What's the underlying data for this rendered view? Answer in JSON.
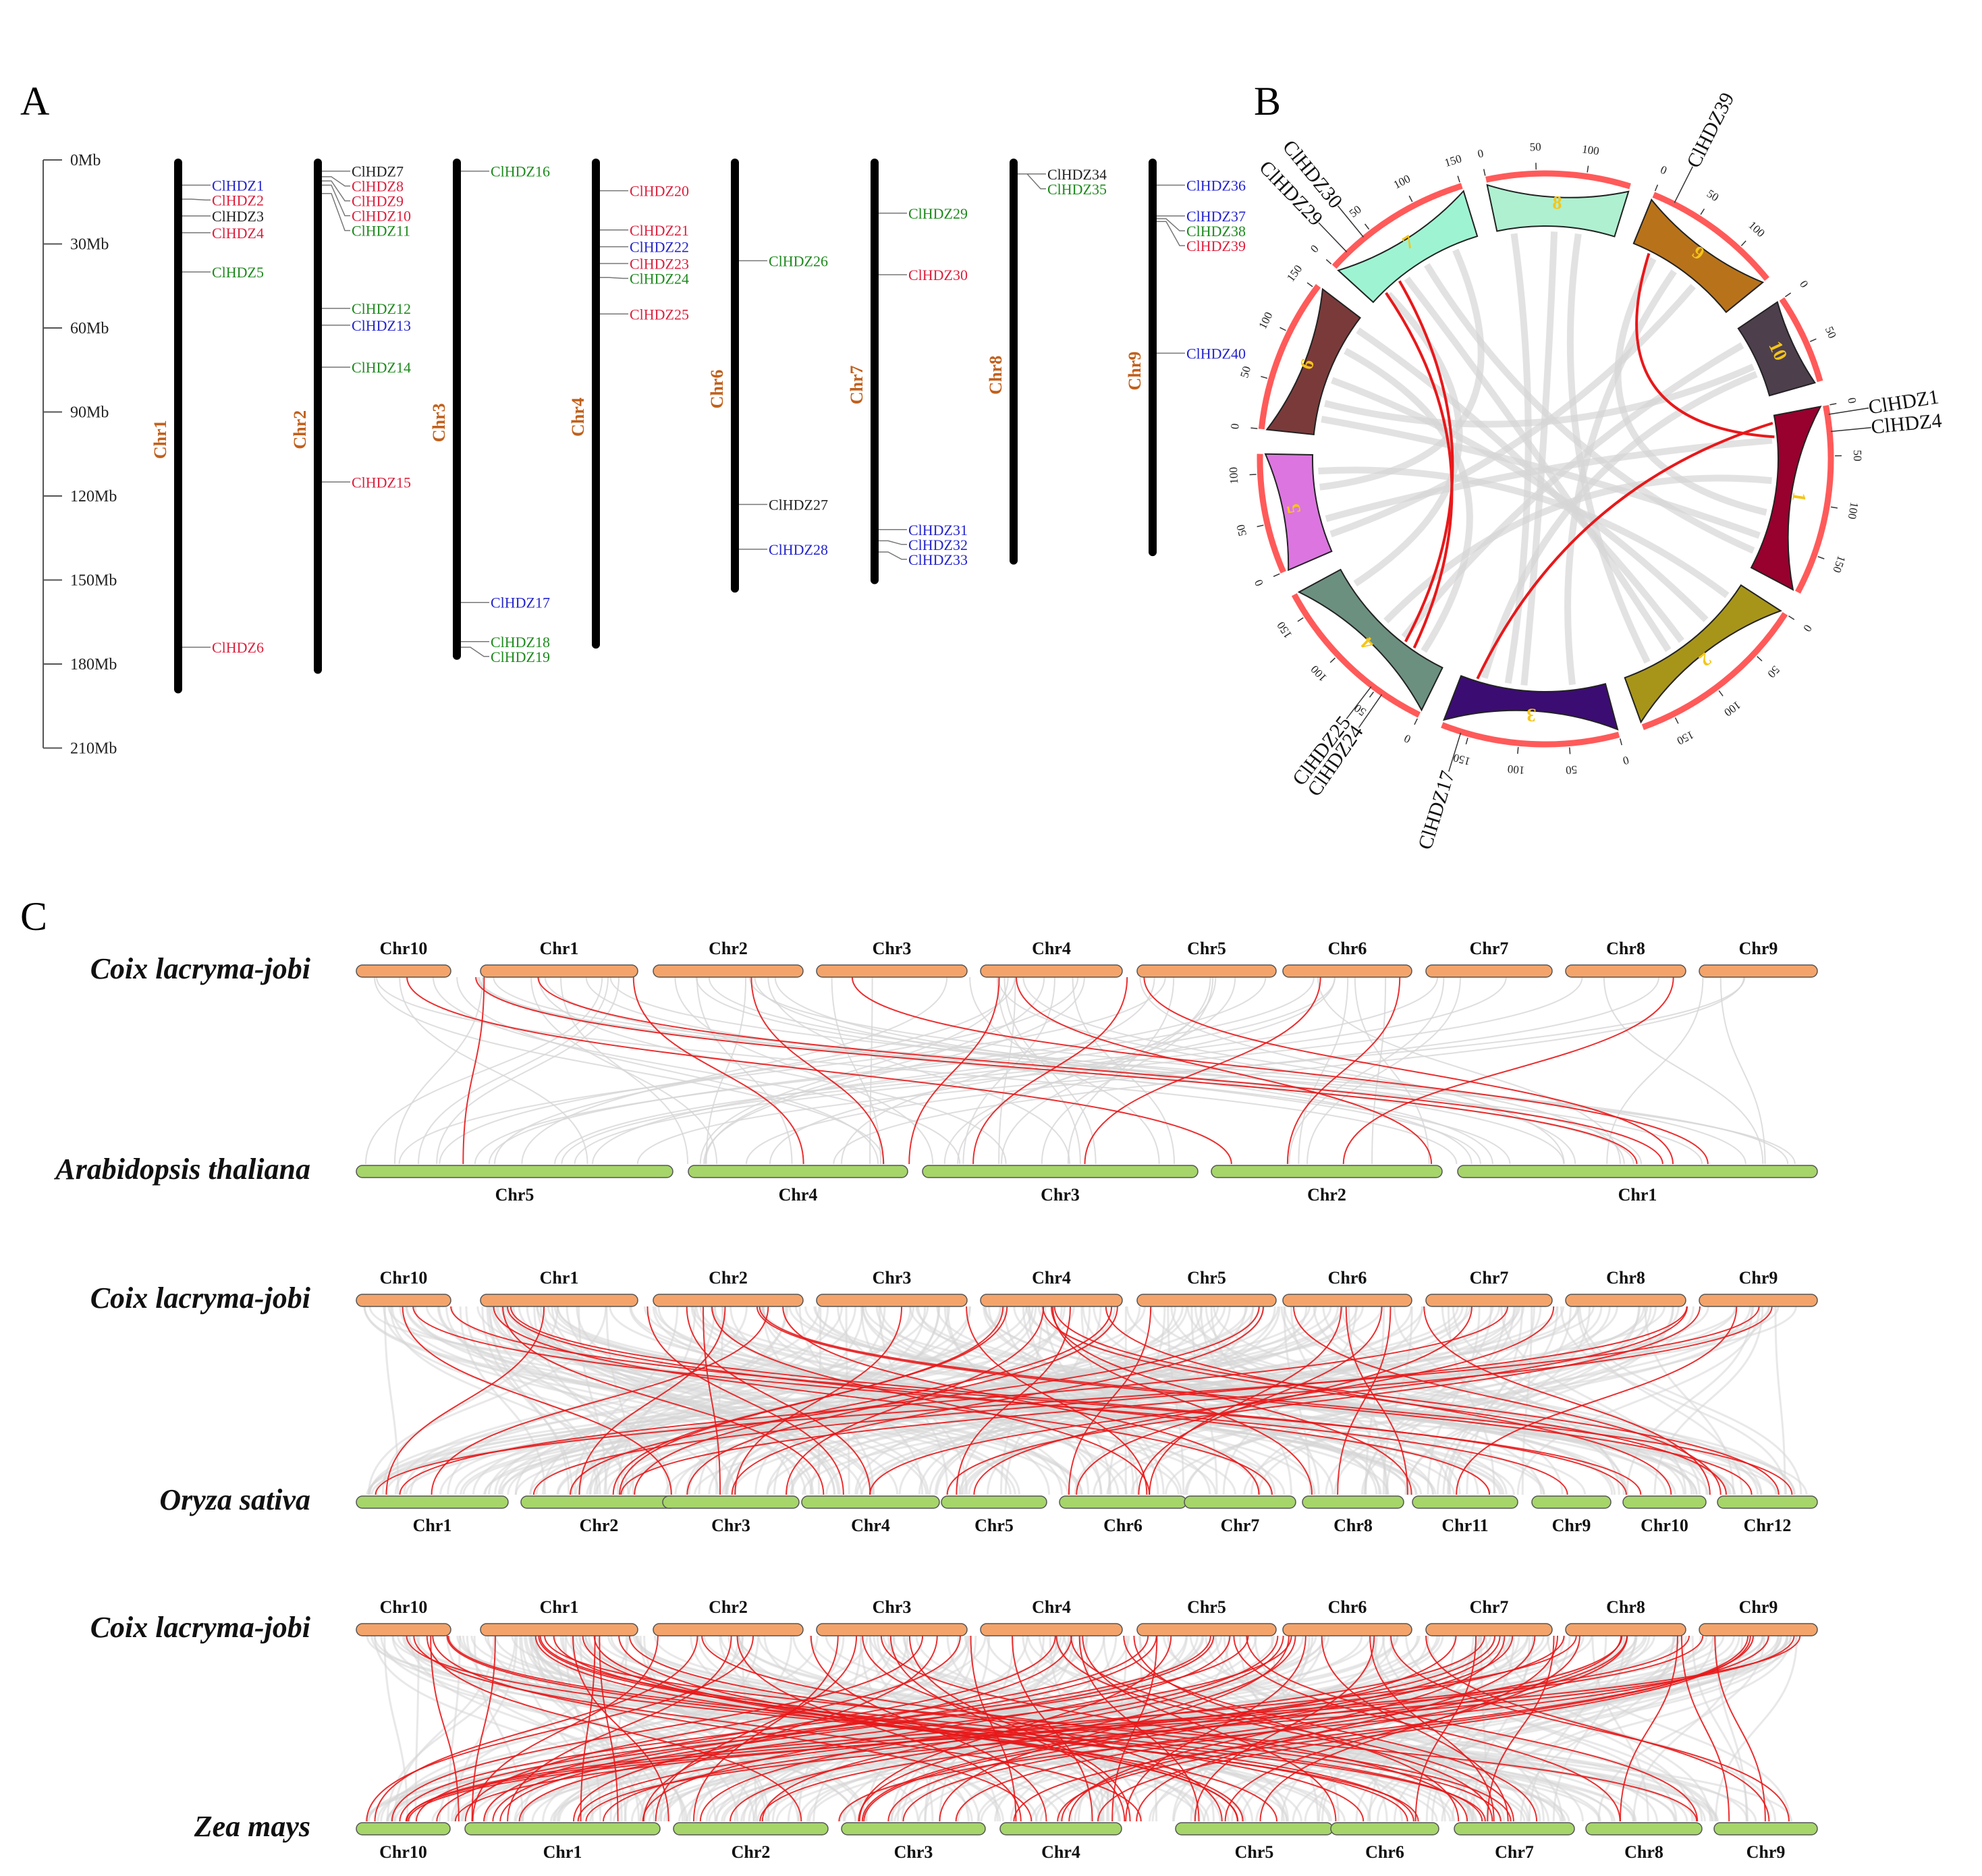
{
  "panel_labels": {
    "a": "A",
    "b": "B",
    "c": "C"
  },
  "colors": {
    "blue": "#2424cc",
    "red": "#dd1f3c",
    "black": "#222222",
    "green": "#1d8a1d",
    "chr_label": "#c1601c",
    "link_red": "#e8181a",
    "link_gray": "#d6d6d6",
    "coix_bar": "#f4a46a",
    "other_bar": "#a6d56a",
    "ideogram_outline": "#ff5a5a"
  },
  "panel_a": {
    "scale_max_mb": 210,
    "scale_ticks": [
      {
        "mb": 0,
        "label": "0Mb"
      },
      {
        "mb": 30,
        "label": "30Mb"
      },
      {
        "mb": 60,
        "label": "60Mb"
      },
      {
        "mb": 90,
        "label": "90Mb"
      },
      {
        "mb": 120,
        "label": "120Mb"
      },
      {
        "mb": 150,
        "label": "150Mb"
      },
      {
        "mb": 180,
        "label": "180Mb"
      },
      {
        "mb": 210,
        "label": "210Mb"
      }
    ],
    "chromosomes": [
      {
        "name": "Chr1",
        "length_mb": 190,
        "genes": [
          {
            "name": "ClHDZ1",
            "pos": 9,
            "color": "blue"
          },
          {
            "name": "ClHDZ2",
            "pos": 14,
            "color": "red"
          },
          {
            "name": "ClHDZ3",
            "pos": 20,
            "color": "black"
          },
          {
            "name": "ClHDZ4",
            "pos": 26,
            "color": "red"
          },
          {
            "name": "ClHDZ5",
            "pos": 40,
            "color": "green"
          },
          {
            "name": "ClHDZ6",
            "pos": 174,
            "color": "red"
          }
        ]
      },
      {
        "name": "Chr2",
        "length_mb": 183,
        "genes": [
          {
            "name": "ClHDZ7",
            "pos": 4,
            "color": "black"
          },
          {
            "name": "ClHDZ8",
            "pos": 6,
            "color": "red"
          },
          {
            "name": "ClHDZ9",
            "pos": 7.5,
            "color": "red"
          },
          {
            "name": "ClHDZ10",
            "pos": 9,
            "color": "red"
          },
          {
            "name": "ClHDZ11",
            "pos": 12,
            "color": "green"
          },
          {
            "name": "ClHDZ12",
            "pos": 53,
            "color": "green"
          },
          {
            "name": "ClHDZ13",
            "pos": 59,
            "color": "blue"
          },
          {
            "name": "ClHDZ14",
            "pos": 74,
            "color": "green"
          },
          {
            "name": "ClHDZ15",
            "pos": 115,
            "color": "red"
          }
        ]
      },
      {
        "name": "Chr3",
        "length_mb": 178,
        "genes": [
          {
            "name": "ClHDZ16",
            "pos": 4,
            "color": "green"
          },
          {
            "name": "ClHDZ17",
            "pos": 158,
            "color": "blue"
          },
          {
            "name": "ClHDZ18",
            "pos": 172,
            "color": "green"
          },
          {
            "name": "ClHDZ19",
            "pos": 174,
            "color": "green"
          }
        ]
      },
      {
        "name": "Chr4",
        "length_mb": 174,
        "genes": [
          {
            "name": "ClHDZ20",
            "pos": 11,
            "color": "red"
          },
          {
            "name": "ClHDZ21",
            "pos": 25,
            "color": "red"
          },
          {
            "name": "ClHDZ22",
            "pos": 31,
            "color": "blue"
          },
          {
            "name": "ClHDZ23",
            "pos": 37,
            "color": "red"
          },
          {
            "name": "ClHDZ24",
            "pos": 42,
            "color": "green"
          },
          {
            "name": "ClHDZ25",
            "pos": 55,
            "color": "red"
          }
        ]
      },
      {
        "name": "Chr6",
        "length_mb": 154,
        "genes": [
          {
            "name": "ClHDZ26",
            "pos": 36,
            "color": "green"
          },
          {
            "name": "ClHDZ27",
            "pos": 123,
            "color": "black"
          },
          {
            "name": "ClHDZ28",
            "pos": 139,
            "color": "blue"
          }
        ]
      },
      {
        "name": "Chr7",
        "length_mb": 151,
        "genes": [
          {
            "name": "ClHDZ29",
            "pos": 19,
            "color": "green"
          },
          {
            "name": "ClHDZ30",
            "pos": 41,
            "color": "red"
          },
          {
            "name": "ClHDZ31",
            "pos": 132,
            "color": "blue"
          },
          {
            "name": "ClHDZ32",
            "pos": 136,
            "color": "blue"
          },
          {
            "name": "ClHDZ33",
            "pos": 140,
            "color": "blue"
          }
        ]
      },
      {
        "name": "Chr8",
        "length_mb": 144,
        "genes": [
          {
            "name": "ClHDZ34",
            "pos": 5,
            "color": "black"
          },
          {
            "name": "ClHDZ35",
            "pos": 5,
            "color": "green"
          }
        ]
      },
      {
        "name": "Chr9",
        "length_mb": 141,
        "genes": [
          {
            "name": "ClHDZ36",
            "pos": 9,
            "color": "blue"
          },
          {
            "name": "ClHDZ37",
            "pos": 20,
            "color": "blue"
          },
          {
            "name": "ClHDZ38",
            "pos": 21,
            "color": "green"
          },
          {
            "name": "ClHDZ39",
            "pos": 22,
            "color": "red"
          },
          {
            "name": "ClHDZ40",
            "pos": 69,
            "color": "blue"
          }
        ]
      }
    ]
  },
  "panel_b": {
    "chromosomes": [
      {
        "name": "1",
        "length": 190,
        "fill": "#98002e",
        "ticks": [
          0,
          50,
          100,
          150
        ]
      },
      {
        "name": "2",
        "length": 183,
        "fill": "#a7951a",
        "ticks": [
          0,
          50,
          100,
          150
        ]
      },
      {
        "name": "3",
        "length": 178,
        "fill": "#3b0c72",
        "ticks": [
          0,
          50,
          100,
          150
        ]
      },
      {
        "name": "4",
        "length": 174,
        "fill": "#6c9080",
        "ticks": [
          0,
          50,
          100,
          150
        ]
      },
      {
        "name": "5",
        "length": 120,
        "fill": "#dc75e0",
        "ticks": [
          0,
          50,
          100
        ]
      },
      {
        "name": "6",
        "length": 154,
        "fill": "#7a3a3a",
        "ticks": [
          0,
          50,
          100,
          150
        ]
      },
      {
        "name": "7",
        "length": 151,
        "fill": "#9ef4d2",
        "ticks": [
          0,
          50,
          100,
          150
        ]
      },
      {
        "name": "8",
        "length": 144,
        "fill": "#aef0d0",
        "ticks": [
          0,
          50,
          100
        ]
      },
      {
        "name": "9",
        "length": 141,
        "fill": "#b8731a",
        "ticks": [
          0,
          50,
          100
        ]
      },
      {
        "name": "10",
        "length": 90,
        "fill": "#4d3f4c",
        "ticks": [
          0,
          50
        ]
      }
    ],
    "gene_labels": [
      {
        "name": "ClHDZ1",
        "chr": "1",
        "pos": 9
      },
      {
        "name": "ClHDZ4",
        "chr": "1",
        "pos": 26
      },
      {
        "name": "ClHDZ17",
        "chr": "3",
        "pos": 158
      },
      {
        "name": "ClHDZ25",
        "chr": "4",
        "pos": 55
      },
      {
        "name": "ClHDZ24",
        "chr": "4",
        "pos": 42
      },
      {
        "name": "ClHDZ29",
        "chr": "7",
        "pos": 19
      },
      {
        "name": "ClHDZ30",
        "chr": "7",
        "pos": 41
      },
      {
        "name": "ClHDZ39",
        "chr": "9",
        "pos": 22
      }
    ],
    "segmental_duplications": [
      {
        "a": "ClHDZ1",
        "b": "ClHDZ17"
      },
      {
        "a": "ClHDZ4",
        "b": "ClHDZ39"
      },
      {
        "a": "ClHDZ24",
        "b": "ClHDZ29"
      },
      {
        "a": "ClHDZ25",
        "b": "ClHDZ30"
      }
    ]
  },
  "panel_c": {
    "coix": {
      "name": "Coix lacryma-jobi",
      "chrs": [
        "Chr10",
        "Chr1",
        "Chr2",
        "Chr3",
        "Chr4",
        "Chr5",
        "Chr6",
        "Chr7",
        "Chr8",
        "Chr9"
      ]
    },
    "comparisons": [
      {
        "species": "Arabidopsis thaliana",
        "chrs": [
          "Chr5",
          "Chr4",
          "Chr3",
          "Chr2",
          "Chr1"
        ]
      },
      {
        "species": "Oryza sativa",
        "chrs": [
          "Chr1",
          "Chr2",
          "Chr3",
          "Chr4",
          "Chr5",
          "Chr6",
          "Chr7",
          "Chr8",
          "Chr11",
          "Chr9",
          "Chr10",
          "Chr12"
        ]
      },
      {
        "species": "Zea mays",
        "chrs": [
          "Chr10",
          "Chr1",
          "Chr2",
          "Chr3",
          "Chr4",
          "Chr5",
          "Chr6",
          "Chr7",
          "Chr8",
          "Chr9"
        ]
      }
    ]
  }
}
